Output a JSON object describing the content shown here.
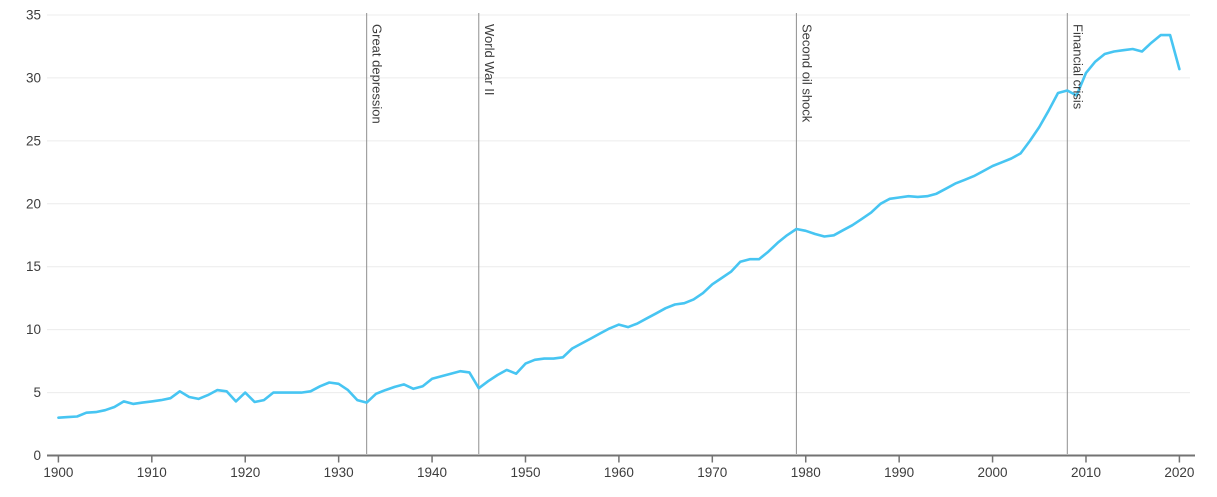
{
  "chart_data": {
    "type": "line",
    "title": "",
    "xlabel": "",
    "ylabel": "",
    "xlim": [
      1900,
      2020
    ],
    "ylim": [
      0,
      35
    ],
    "x_ticks": [
      1900,
      1910,
      1920,
      1930,
      1940,
      1950,
      1960,
      1970,
      1980,
      1990,
      2000,
      2010,
      2020
    ],
    "y_ticks": [
      0,
      5,
      10,
      15,
      20,
      25,
      30,
      35
    ],
    "grid": "horizontal",
    "legend": "none",
    "x": [
      1900,
      1901,
      1902,
      1903,
      1904,
      1905,
      1906,
      1907,
      1908,
      1909,
      1910,
      1911,
      1912,
      1913,
      1914,
      1915,
      1916,
      1917,
      1918,
      1919,
      1920,
      1921,
      1922,
      1923,
      1924,
      1925,
      1926,
      1927,
      1928,
      1929,
      1930,
      1931,
      1932,
      1933,
      1934,
      1935,
      1936,
      1937,
      1938,
      1939,
      1940,
      1941,
      1942,
      1943,
      1944,
      1945,
      1946,
      1947,
      1948,
      1949,
      1950,
      1951,
      1952,
      1953,
      1954,
      1955,
      1956,
      1957,
      1958,
      1959,
      1960,
      1961,
      1962,
      1963,
      1964,
      1965,
      1966,
      1967,
      1968,
      1969,
      1970,
      1971,
      1972,
      1973,
      1974,
      1975,
      1976,
      1977,
      1978,
      1979,
      1980,
      1981,
      1982,
      1983,
      1984,
      1985,
      1986,
      1987,
      1988,
      1989,
      1990,
      1991,
      1992,
      1993,
      1994,
      1995,
      1996,
      1997,
      1998,
      1999,
      2000,
      2001,
      2002,
      2003,
      2004,
      2005,
      2006,
      2007,
      2008,
      2009,
      2010,
      2011,
      2012,
      2013,
      2014,
      2015,
      2016,
      2017,
      2018,
      2019,
      2020
    ],
    "series": [
      {
        "name": "value",
        "color": "#47c5f2",
        "values": [
          3.0,
          3.05,
          3.1,
          3.4,
          3.45,
          3.6,
          3.85,
          4.3,
          4.1,
          4.2,
          4.3,
          4.4,
          4.55,
          5.1,
          4.65,
          4.5,
          4.8,
          5.2,
          5.1,
          4.3,
          5.0,
          4.25,
          4.4,
          5.0,
          5.0,
          5.0,
          5.0,
          5.1,
          5.5,
          5.8,
          5.7,
          5.2,
          4.4,
          4.2,
          4.9,
          5.2,
          5.45,
          5.65,
          5.3,
          5.5,
          6.1,
          6.3,
          6.5,
          6.7,
          6.6,
          5.35,
          5.9,
          6.4,
          6.8,
          6.5,
          7.3,
          7.6,
          7.7,
          7.7,
          7.8,
          8.5,
          8.9,
          9.3,
          9.7,
          10.1,
          10.4,
          10.2,
          10.5,
          10.9,
          11.3,
          11.7,
          12.0,
          12.1,
          12.4,
          12.9,
          13.6,
          14.1,
          14.6,
          15.4,
          15.6,
          15.6,
          16.2,
          16.9,
          17.5,
          18.0,
          17.85,
          17.6,
          17.4,
          17.5,
          17.9,
          18.3,
          18.8,
          19.3,
          20.0,
          20.4,
          20.5,
          20.6,
          20.55,
          20.6,
          20.8,
          21.2,
          21.6,
          21.9,
          22.2,
          22.6,
          23.0,
          23.3,
          23.6,
          24.0,
          25.0,
          26.1,
          27.4,
          28.8,
          29.0,
          28.6,
          30.4,
          31.3,
          31.9,
          32.1,
          32.2,
          32.3,
          32.1,
          32.8,
          33.4,
          33.4,
          30.7
        ]
      }
    ],
    "annotations": [
      {
        "year": 1933,
        "label": "Great depression"
      },
      {
        "year": 1945,
        "label": "World War II"
      },
      {
        "year": 1979,
        "label": "Second oil shock"
      },
      {
        "year": 2008,
        "label": "Financial crisis"
      }
    ]
  },
  "colors": {
    "background": "#ffffff",
    "line": "#47c5f2",
    "grid": "#ececec",
    "axis": "#737373",
    "event_line": "#8f8f8f",
    "text": "#3d3d3d"
  }
}
